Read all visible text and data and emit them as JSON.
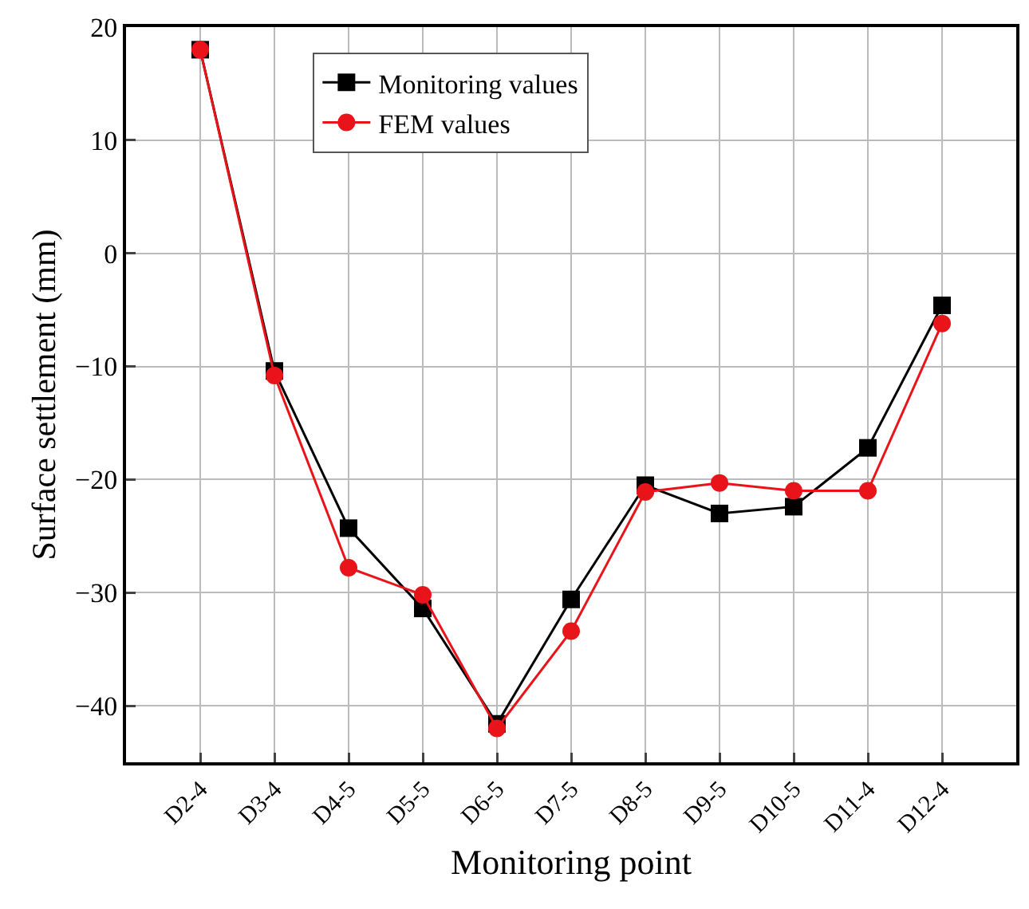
{
  "chart_data": {
    "type": "line",
    "xlabel": "Monitoring point",
    "ylabel": "Surface settlement (mm)",
    "categories": [
      "D2-4",
      "D3-4",
      "D4-5",
      "D5-5",
      "D6-5",
      "D7-5",
      "D8-5",
      "D9-5",
      "D10-5",
      "D11-4",
      "D12-4"
    ],
    "series": [
      {
        "name": "Monitoring values",
        "color": "#000000",
        "marker": "square",
        "values": [
          18,
          -10.4,
          -24.3,
          -31.4,
          -41.6,
          -30.6,
          -20.5,
          -23.0,
          -22.4,
          -17.2,
          -4.6
        ]
      },
      {
        "name": "FEM values",
        "color": "#e8141a",
        "marker": "circle",
        "values": [
          18,
          -10.8,
          -27.8,
          -30.2,
          -42.0,
          -33.4,
          -21.1,
          -20.3,
          -21.0,
          -21.0,
          -6.2
        ]
      }
    ],
    "ylim": [
      -45,
      20
    ],
    "yticks": [
      -40,
      -30,
      -20,
      -10,
      0,
      10,
      20
    ],
    "grid": true,
    "legend": "top left",
    "line_style": "solid"
  }
}
